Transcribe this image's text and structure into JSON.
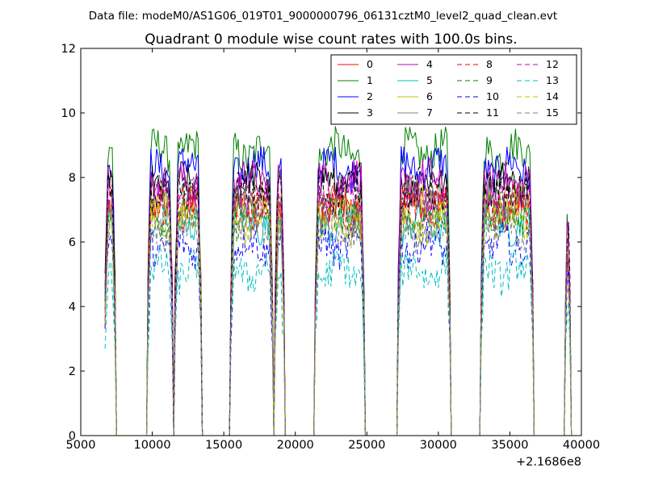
{
  "chart_data": {
    "type": "line",
    "suptitle": "Data file: modeM0/AS1G06_019T01_9000000796_06131cztM0_level2_quad_clean.evt",
    "title": "Quadrant 0 module wise count rates with 100.0s bins.",
    "xlabel": "",
    "ylabel": "",
    "x_offset_label": "+2.1686e8",
    "xlim": [
      5000,
      40000
    ],
    "ylim": [
      0,
      12
    ],
    "xticks": [
      5000,
      10000,
      15000,
      20000,
      25000,
      30000,
      35000,
      40000
    ],
    "yticks": [
      0,
      2,
      4,
      6,
      8,
      10,
      12
    ],
    "grid": false,
    "legend_position": "top-right",
    "bin_size_s": 100,
    "segments": [
      [
        6700,
        7400
      ],
      [
        9700,
        11400
      ],
      [
        11600,
        13400
      ],
      [
        15500,
        18400
      ],
      [
        18600,
        19200
      ],
      [
        21400,
        24800
      ],
      [
        27200,
        30800
      ],
      [
        33000,
        36600
      ],
      [
        38900,
        39200
      ]
    ],
    "series": [
      {
        "name": "0",
        "color": "#ff0000",
        "dash": "solid",
        "level": 7.0
      },
      {
        "name": "1",
        "color": "#008000",
        "dash": "solid",
        "level": 8.8
      },
      {
        "name": "2",
        "color": "#0000ff",
        "dash": "solid",
        "level": 8.3
      },
      {
        "name": "3",
        "color": "#000000",
        "dash": "solid",
        "level": 7.8
      },
      {
        "name": "4",
        "color": "#bf00bf",
        "dash": "solid",
        "level": 7.9
      },
      {
        "name": "5",
        "color": "#00bfbf",
        "dash": "solid",
        "level": 6.6
      },
      {
        "name": "6",
        "color": "#bfbf00",
        "dash": "solid",
        "level": 7.2
      },
      {
        "name": "7",
        "color": "#808080",
        "dash": "solid",
        "level": 7.4
      },
      {
        "name": "8",
        "color": "#ff0000",
        "dash": "dashed",
        "level": 7.1
      },
      {
        "name": "9",
        "color": "#008000",
        "dash": "dashed",
        "level": 6.8
      },
      {
        "name": "10",
        "color": "#0000ff",
        "dash": "dashed",
        "level": 5.9
      },
      {
        "name": "11",
        "color": "#000000",
        "dash": "dashed",
        "level": 7.6
      },
      {
        "name": "12",
        "color": "#bf00bf",
        "dash": "dashed",
        "level": 7.3
      },
      {
        "name": "13",
        "color": "#00bfbf",
        "dash": "dashed",
        "level": 5.1
      },
      {
        "name": "14",
        "color": "#bfbf00",
        "dash": "dashed",
        "level": 6.6
      },
      {
        "name": "15",
        "color": "#808080",
        "dash": "dashed",
        "level": 6.4
      }
    ]
  }
}
